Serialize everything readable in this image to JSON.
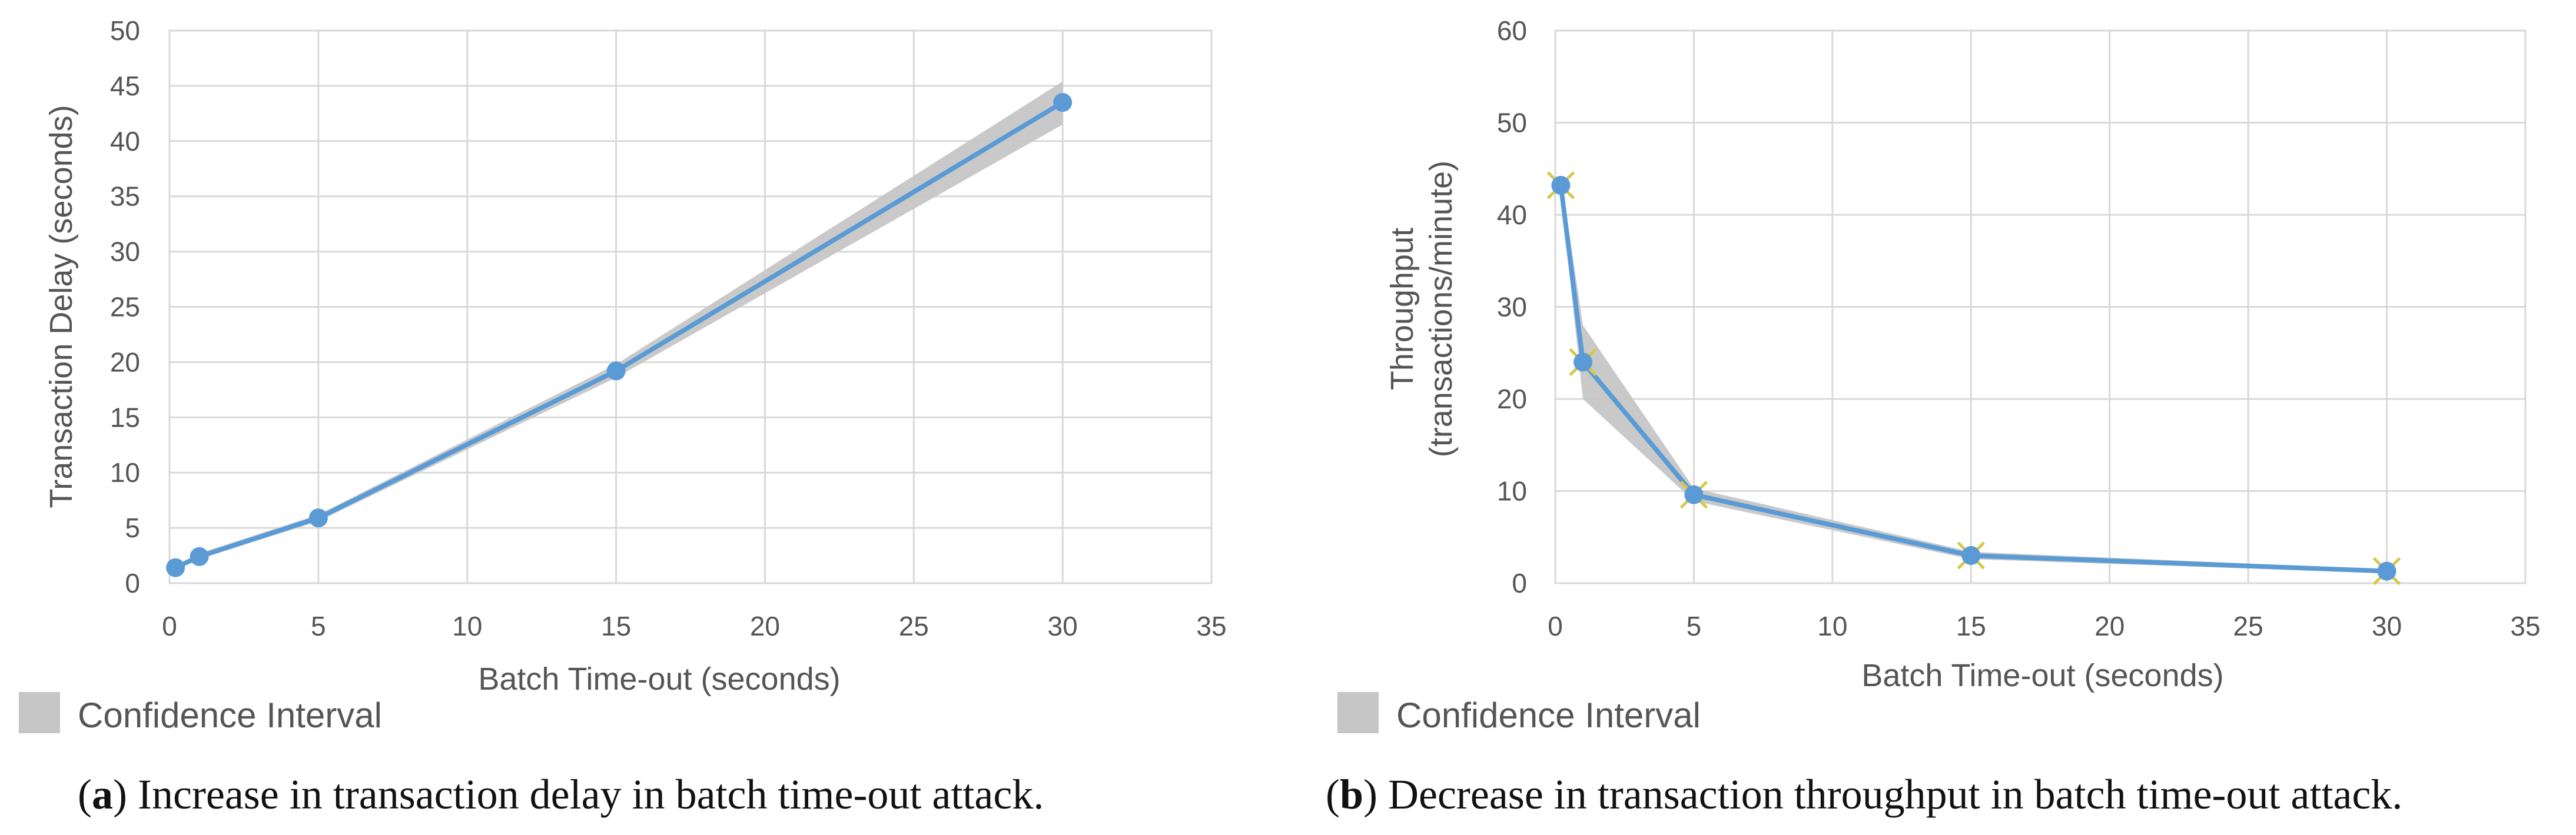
{
  "chart_data": [
    {
      "type": "line",
      "id": "a",
      "xlabel": "Batch Time-out (seconds)",
      "ylabel": "Transaction Delay (seconds)",
      "xlim": [
        0,
        35
      ],
      "ylim": [
        0,
        50
      ],
      "xticks": [
        "0",
        "5",
        "10",
        "15",
        "20",
        "25",
        "30",
        "35"
      ],
      "yticks": [
        "0",
        "5",
        "10",
        "15",
        "20",
        "25",
        "30",
        "35",
        "40",
        "45",
        "50"
      ],
      "x": [
        0.2,
        1,
        5,
        15,
        30
      ],
      "series": [
        {
          "name": "Transaction Delay",
          "values": [
            1.4,
            2.4,
            5.9,
            19.2,
            43.5
          ]
        }
      ],
      "confidence_interval": {
        "lower": [
          1.2,
          2.2,
          5.6,
          18.6,
          41.5
        ],
        "upper": [
          1.6,
          2.7,
          6.2,
          19.8,
          45.4
        ]
      },
      "legend": "Confidence Interval",
      "caption_label": "a",
      "caption_text": ") Increase in transaction delay in batch time-out attack."
    },
    {
      "type": "line",
      "id": "b",
      "xlabel": "Batch Time-out (seconds)",
      "ylabel": "Throughput",
      "ylabel2": "(transactions/minute)",
      "xlim": [
        0,
        35
      ],
      "ylim": [
        0,
        60
      ],
      "xticks": [
        "0",
        "5",
        "10",
        "15",
        "20",
        "25",
        "30",
        "35"
      ],
      "yticks": [
        "0",
        "10",
        "20",
        "30",
        "40",
        "50",
        "60"
      ],
      "x": [
        0.2,
        1,
        5,
        15,
        30
      ],
      "series": [
        {
          "name": "Throughput",
          "values": [
            43.2,
            24,
            9.6,
            3,
            1.3
          ]
        }
      ],
      "confidence_interval": {
        "lower": [
          42.2,
          20,
          8.9,
          2.6,
          1.1
        ],
        "upper": [
          44.2,
          28,
          10.3,
          3.4,
          1.5
        ]
      },
      "legend": "Confidence Interval",
      "caption_label": "b",
      "caption_text": ") Decrease in transaction throughput in batch time-out attack."
    }
  ],
  "colors": {
    "line": "#5b9bd5",
    "band": "#c6c6c6",
    "grid": "#d9d9d9",
    "marker_cross": "#d6c84a"
  }
}
